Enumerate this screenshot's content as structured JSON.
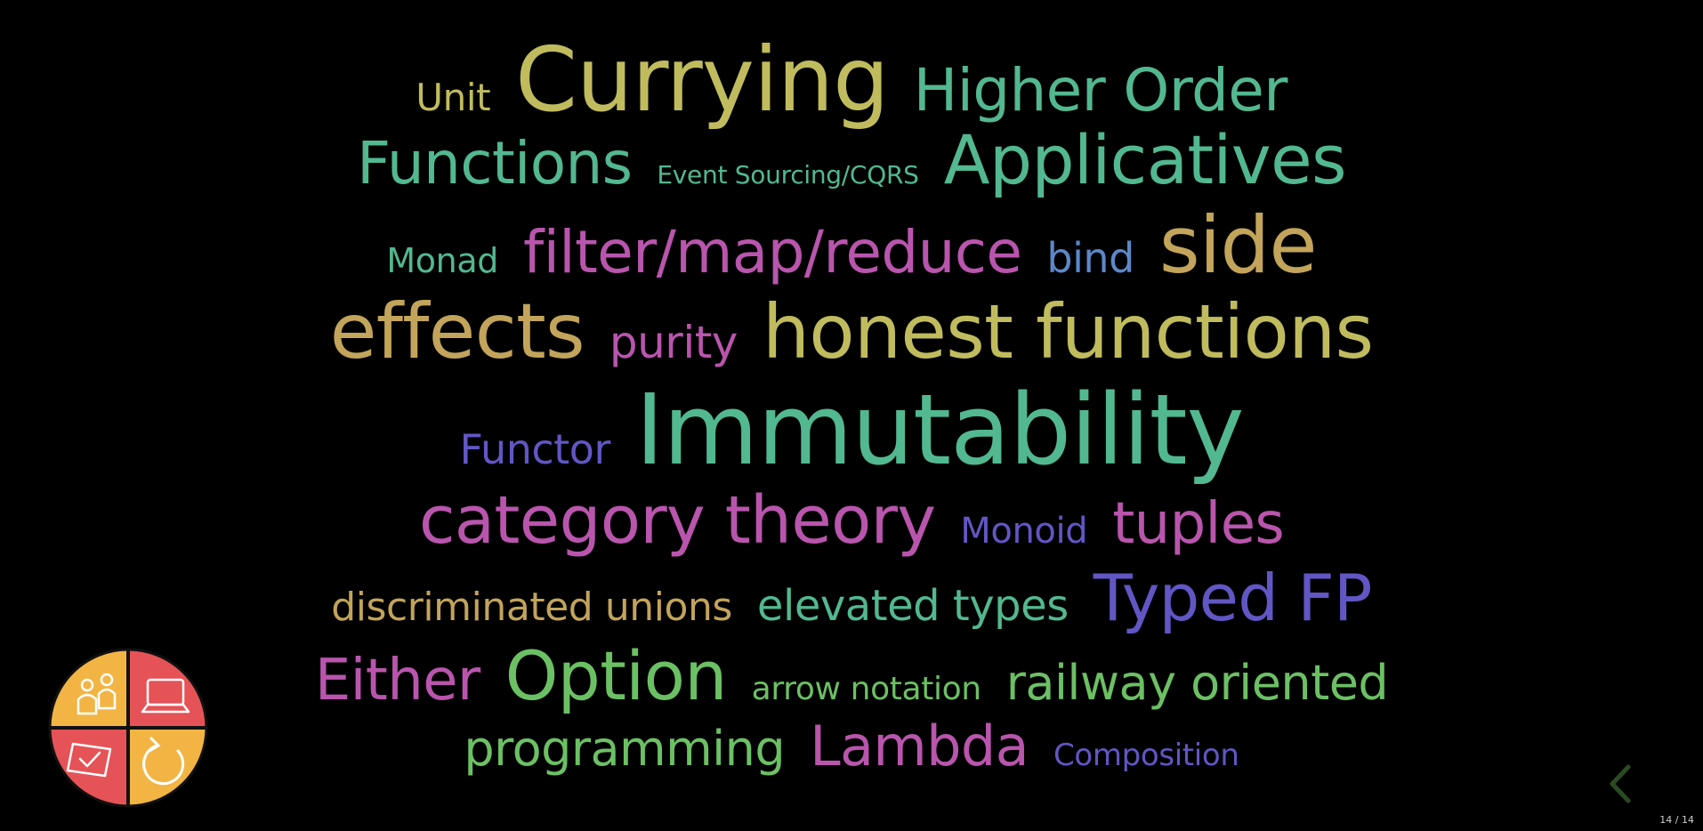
{
  "colors": {
    "background": "#000000",
    "olive": "#c0bc5e",
    "teal": "#52b890",
    "gold": "#c2a45a",
    "magenta": "#b955ad",
    "blue": "#5c88c8",
    "indigo": "#6156c4",
    "green": "#6cc064"
  },
  "word_cloud": {
    "line1": [
      "Unit",
      "Currying",
      "Higher Order"
    ],
    "line2": [
      "Functions",
      "Event Sourcing/CQRS",
      "Applicatives"
    ],
    "line3": [
      "Monad",
      "filter/map/reduce",
      "bind",
      "side"
    ],
    "line4": [
      "effects",
      "purity",
      "honest functions"
    ],
    "line5": [
      "Functor",
      "Immutability"
    ],
    "line6": [
      "category theory",
      "Monoid",
      "tuples"
    ],
    "line7": [
      "discriminated unions",
      "elevated types",
      "Typed FP"
    ],
    "line8": [
      "Either",
      "Option",
      "arrow notation",
      "railway oriented"
    ],
    "line9": [
      "programming",
      "Lambda",
      "Composition"
    ]
  },
  "logo": {
    "icon": "team-quadrant-logo-icon",
    "quadrant_colors": [
      "#f2b544",
      "#e55357",
      "#e55357",
      "#f2b544"
    ]
  },
  "navigation": {
    "prev_icon": "chevron-left-icon",
    "prev_color": "#2c4a22"
  },
  "slide_counter": "14 / 14"
}
